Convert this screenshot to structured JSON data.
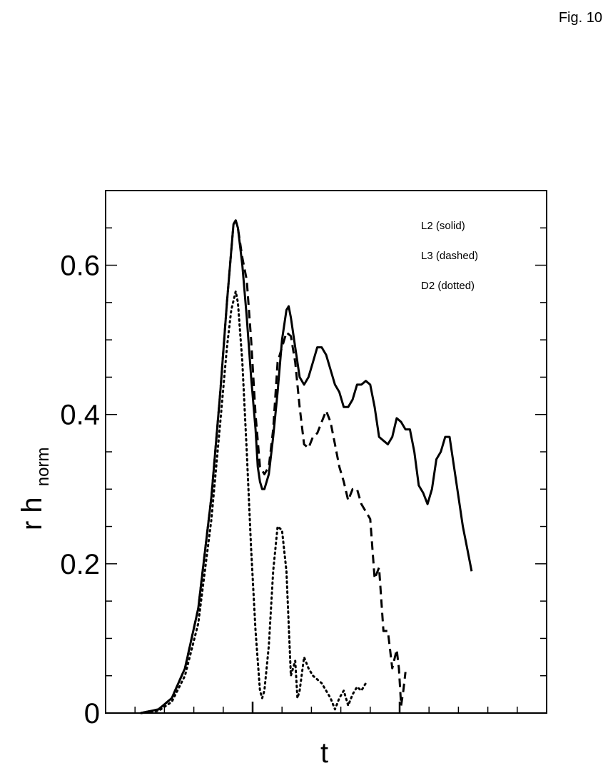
{
  "figure": {
    "label": "Fig. 10"
  },
  "chart_data": {
    "type": "line",
    "xlabel": "t",
    "ylabel_main": "r h",
    "ylabel_sub": "norm",
    "ylim": [
      0,
      0.7
    ],
    "y_ticks": [
      {
        "value": 0,
        "label": "0"
      },
      {
        "value": 0.2,
        "label": "0.2"
      },
      {
        "value": 0.4,
        "label": "0.4"
      },
      {
        "value": 0.6,
        "label": "0.6"
      }
    ],
    "x_tick_labels_shown": false,
    "legend": [
      "L2 (solid)",
      "L3 (dashed)",
      "D2 (dotted)"
    ],
    "legend_position": "top-right",
    "grid": false,
    "series": [
      {
        "name": "L2 (solid)",
        "style": "solid",
        "points": [
          [
            0.08,
            0
          ],
          [
            0.12,
            0.005
          ],
          [
            0.15,
            0.02
          ],
          [
            0.18,
            0.06
          ],
          [
            0.21,
            0.14
          ],
          [
            0.24,
            0.29
          ],
          [
            0.26,
            0.43
          ],
          [
            0.275,
            0.55
          ],
          [
            0.285,
            0.62
          ],
          [
            0.29,
            0.655
          ],
          [
            0.295,
            0.66
          ],
          [
            0.3,
            0.65
          ],
          [
            0.31,
            0.6
          ],
          [
            0.32,
            0.53
          ],
          [
            0.33,
            0.45
          ],
          [
            0.34,
            0.38
          ],
          [
            0.345,
            0.33
          ],
          [
            0.35,
            0.31
          ],
          [
            0.355,
            0.3
          ],
          [
            0.36,
            0.3
          ],
          [
            0.37,
            0.32
          ],
          [
            0.38,
            0.37
          ],
          [
            0.39,
            0.43
          ],
          [
            0.4,
            0.5
          ],
          [
            0.41,
            0.54
          ],
          [
            0.415,
            0.545
          ],
          [
            0.42,
            0.53
          ],
          [
            0.43,
            0.49
          ],
          [
            0.44,
            0.45
          ],
          [
            0.45,
            0.44
          ],
          [
            0.46,
            0.45
          ],
          [
            0.47,
            0.47
          ],
          [
            0.48,
            0.49
          ],
          [
            0.49,
            0.49
          ],
          [
            0.5,
            0.48
          ],
          [
            0.51,
            0.46
          ],
          [
            0.52,
            0.44
          ],
          [
            0.53,
            0.43
          ],
          [
            0.54,
            0.41
          ],
          [
            0.55,
            0.41
          ],
          [
            0.56,
            0.42
          ],
          [
            0.57,
            0.44
          ],
          [
            0.58,
            0.44
          ],
          [
            0.59,
            0.445
          ],
          [
            0.6,
            0.44
          ],
          [
            0.61,
            0.41
          ],
          [
            0.62,
            0.37
          ],
          [
            0.63,
            0.365
          ],
          [
            0.64,
            0.36
          ],
          [
            0.65,
            0.37
          ],
          [
            0.66,
            0.395
          ],
          [
            0.67,
            0.39
          ],
          [
            0.68,
            0.38
          ],
          [
            0.69,
            0.38
          ],
          [
            0.7,
            0.35
          ],
          [
            0.71,
            0.305
          ],
          [
            0.72,
            0.295
          ],
          [
            0.73,
            0.28
          ],
          [
            0.74,
            0.3
          ],
          [
            0.75,
            0.34
          ],
          [
            0.76,
            0.35
          ],
          [
            0.77,
            0.37
          ],
          [
            0.78,
            0.37
          ],
          [
            0.79,
            0.33
          ],
          [
            0.8,
            0.29
          ],
          [
            0.81,
            0.25
          ],
          [
            0.82,
            0.22
          ],
          [
            0.83,
            0.19
          ]
        ]
      },
      {
        "name": "L3 (dashed)",
        "style": "dashed",
        "points": [
          [
            0.08,
            0
          ],
          [
            0.12,
            0.005
          ],
          [
            0.15,
            0.02
          ],
          [
            0.18,
            0.06
          ],
          [
            0.21,
            0.14
          ],
          [
            0.24,
            0.29
          ],
          [
            0.26,
            0.43
          ],
          [
            0.275,
            0.55
          ],
          [
            0.285,
            0.62
          ],
          [
            0.29,
            0.655
          ],
          [
            0.295,
            0.66
          ],
          [
            0.3,
            0.65
          ],
          [
            0.31,
            0.61
          ],
          [
            0.32,
            0.58
          ],
          [
            0.33,
            0.5
          ],
          [
            0.34,
            0.4
          ],
          [
            0.35,
            0.33
          ],
          [
            0.36,
            0.32
          ],
          [
            0.37,
            0.33
          ],
          [
            0.38,
            0.38
          ],
          [
            0.39,
            0.47
          ],
          [
            0.4,
            0.49
          ],
          [
            0.41,
            0.51
          ],
          [
            0.42,
            0.505
          ],
          [
            0.43,
            0.47
          ],
          [
            0.44,
            0.41
          ],
          [
            0.45,
            0.36
          ],
          [
            0.46,
            0.355
          ],
          [
            0.47,
            0.37
          ],
          [
            0.48,
            0.375
          ],
          [
            0.49,
            0.39
          ],
          [
            0.5,
            0.405
          ],
          [
            0.51,
            0.39
          ],
          [
            0.52,
            0.36
          ],
          [
            0.53,
            0.33
          ],
          [
            0.54,
            0.31
          ],
          [
            0.55,
            0.285
          ],
          [
            0.56,
            0.3
          ],
          [
            0.57,
            0.3
          ],
          [
            0.58,
            0.28
          ],
          [
            0.59,
            0.27
          ],
          [
            0.6,
            0.26
          ],
          [
            0.61,
            0.18
          ],
          [
            0.62,
            0.195
          ],
          [
            0.63,
            0.11
          ],
          [
            0.64,
            0.11
          ],
          [
            0.65,
            0.06
          ],
          [
            0.66,
            0.085
          ],
          [
            0.665,
            0.06
          ],
          [
            0.67,
            0.01
          ],
          [
            0.675,
            0.03
          ],
          [
            0.68,
            0.055
          ]
        ]
      },
      {
        "name": "D2 (dotted)",
        "style": "dotted",
        "points": [
          [
            0.08,
            0
          ],
          [
            0.12,
            0.003
          ],
          [
            0.15,
            0.015
          ],
          [
            0.18,
            0.05
          ],
          [
            0.21,
            0.12
          ],
          [
            0.24,
            0.26
          ],
          [
            0.26,
            0.39
          ],
          [
            0.275,
            0.49
          ],
          [
            0.285,
            0.54
          ],
          [
            0.295,
            0.565
          ],
          [
            0.3,
            0.55
          ],
          [
            0.31,
            0.47
          ],
          [
            0.32,
            0.35
          ],
          [
            0.33,
            0.22
          ],
          [
            0.34,
            0.11
          ],
          [
            0.35,
            0.03
          ],
          [
            0.355,
            0.02
          ],
          [
            0.36,
            0.03
          ],
          [
            0.37,
            0.09
          ],
          [
            0.38,
            0.19
          ],
          [
            0.39,
            0.25
          ],
          [
            0.4,
            0.245
          ],
          [
            0.41,
            0.19
          ],
          [
            0.42,
            0.05
          ],
          [
            0.43,
            0.07
          ],
          [
            0.435,
            0.02
          ],
          [
            0.44,
            0.03
          ],
          [
            0.45,
            0.075
          ],
          [
            0.46,
            0.06
          ],
          [
            0.47,
            0.05
          ],
          [
            0.48,
            0.045
          ],
          [
            0.49,
            0.04
          ],
          [
            0.5,
            0.03
          ],
          [
            0.51,
            0.02
          ],
          [
            0.52,
            0.005
          ],
          [
            0.53,
            0.02
          ],
          [
            0.54,
            0.03
          ],
          [
            0.55,
            0.01
          ],
          [
            0.56,
            0.025
          ],
          [
            0.57,
            0.035
          ],
          [
            0.58,
            0.03
          ],
          [
            0.59,
            0.04
          ]
        ]
      }
    ]
  }
}
